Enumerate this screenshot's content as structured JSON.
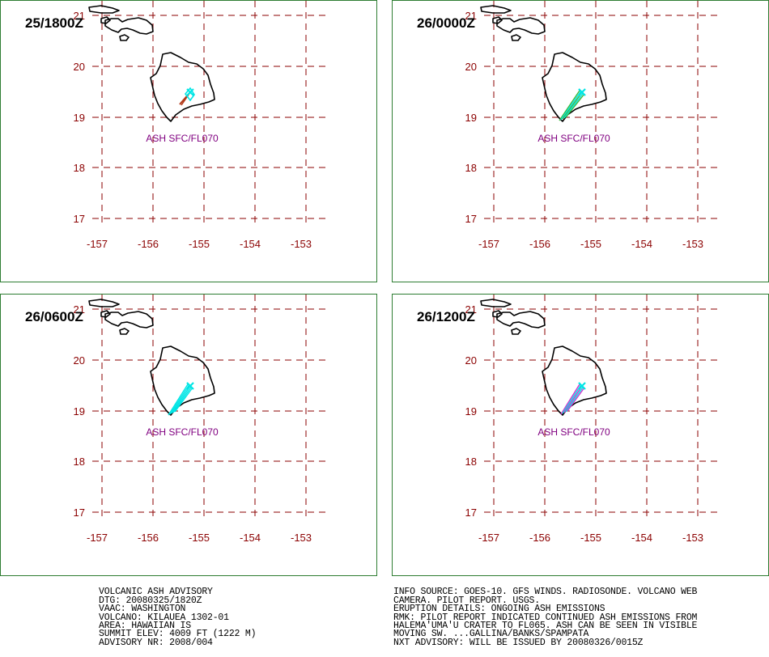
{
  "panels": [
    {
      "time": "25/1800Z",
      "level": "ASH SFC/FL070",
      "ash_color": "#00e5e5",
      "secondary_color": "#b23a1a"
    },
    {
      "time": "26/0000Z",
      "level": "ASH SFC/FL070",
      "ash_color": "#00e5e5",
      "secondary_color": "#3cb83c"
    },
    {
      "time": "26/0600Z",
      "level": "ASH SFC/FL070",
      "ash_color": "#00e5e5",
      "secondary_color": "#00e5e5"
    },
    {
      "time": "26/1200Z",
      "level": "ASH SFC/FL070",
      "ash_color": "#00e5e5",
      "secondary_color": "#cc33cc"
    }
  ],
  "map": {
    "lat_labels": [
      "21",
      "20",
      "19",
      "18",
      "17"
    ],
    "lon_labels": [
      "-157",
      "-156",
      "-155",
      "-154",
      "-153"
    ],
    "grid_color": "#8b0000",
    "coast_color": "#000000"
  },
  "advisory_left": [
    "VOLCANIC ASH ADVISORY",
    "DTG: 20080325/1820Z",
    "VAAC: WASHINGTON",
    "VOLCANO: KILAUEA 1302-01",
    "AREA: HAWAIIAN IS",
    "SUMMIT ELEV: 4009 FT (1222 M)",
    "ADVISORY NR: 2008/004"
  ],
  "advisory_right": [
    "INFO SOURCE: GOES-10. GFS WINDS. RADIOSONDE. VOLCANO WEB",
    "CAMERA. PILOT REPORT. USGS.",
    "ERUPTION DETAILS: ONGOING ASH EMISSIONS",
    "RMK: PILOT REPORT INDICATED CONTINUED ASH EMISSIONS FROM",
    "HALEMA'UMA'U CRATER TO FL065. ASH CAN BE SEEN IN VISIBLE",
    "MOVING SW. ...GALLINA/BANKS/SPAMPATA",
    "NXT ADVISORY: WILL BE ISSUED BY 20080326/0015Z"
  ]
}
